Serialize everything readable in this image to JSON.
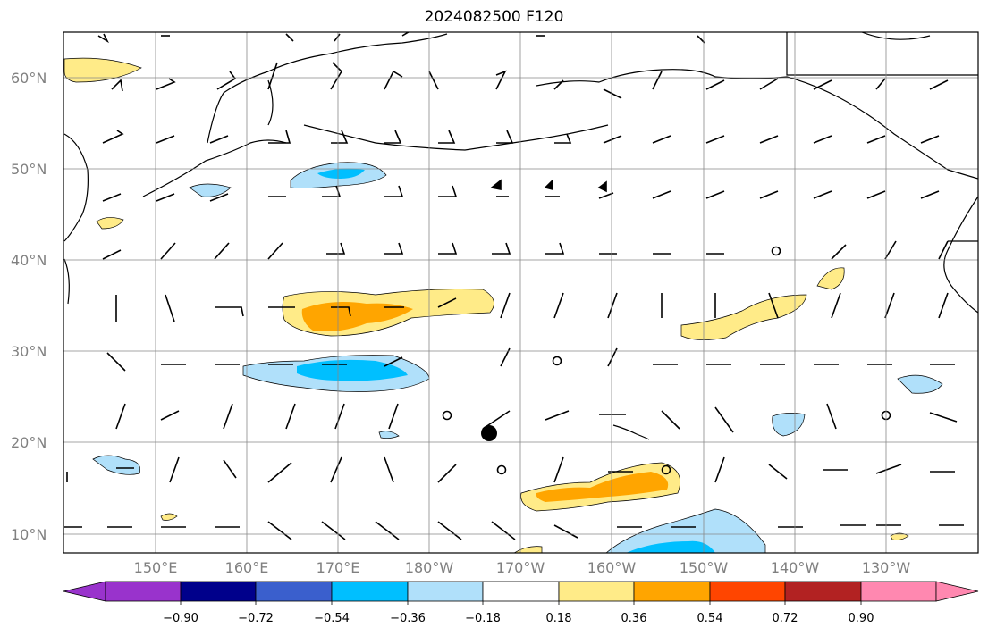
{
  "title": "2024082500 F120",
  "lat_labels": [
    "60°N",
    "50°N",
    "40°N",
    "30°N",
    "20°N",
    "10°N"
  ],
  "lon_labels": [
    "150°E",
    "160°E",
    "170°E",
    "180°W",
    "170°W",
    "160°W",
    "150°W",
    "140°W",
    "130°W"
  ],
  "colorbar": {
    "ticks": [
      "−0.90",
      "−0.72",
      "−0.54",
      "−0.36",
      "−0.18",
      "0.18",
      "0.36",
      "0.54",
      "0.72",
      "0.90"
    ],
    "colors": {
      "under": "#9933cc",
      "c1": "#00008b",
      "c2": "#3a5fcd",
      "c3": "#00bfff",
      "c4": "#b0e0fa",
      "c5": "#ffffff",
      "c6": "#ffeb88",
      "c7": "#ffa500",
      "c8": "#ff4500",
      "c9": "#b22222",
      "over": "#ff88b0"
    }
  },
  "map": {
    "projection": "PlateCarree",
    "lon_range": [
      140,
      242
    ],
    "lat_range": [
      8,
      65
    ],
    "grid": true,
    "feature": "wind barbs with shaded anomaly contours; black marker near 21°N 173°W"
  }
}
